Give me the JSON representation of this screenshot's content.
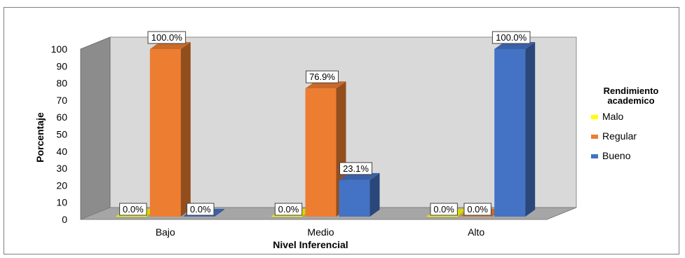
{
  "chart_data": {
    "type": "bar",
    "categories": [
      "Bajo",
      "Medio",
      "Alto"
    ],
    "series": [
      {
        "name": "Malo",
        "color": "#ffff00",
        "values": [
          0.0,
          0.0,
          0.0
        ],
        "labels": [
          "0.0%",
          "0.0%",
          "0.0%"
        ]
      },
      {
        "name": "Regular",
        "color": "#ed7d31",
        "values": [
          100.0,
          76.9,
          0.0
        ],
        "labels": [
          "100.0%",
          "76.9%",
          "0.0%"
        ]
      },
      {
        "name": "Bueno",
        "color": "#4472c4",
        "values": [
          0.0,
          23.1,
          100.0
        ],
        "labels": [
          "0.0%",
          "23.1%",
          "100.0%"
        ]
      }
    ],
    "xlabel": "Nivel Inferencial",
    "ylabel": "Porcentaje",
    "ylim": [
      0,
      100
    ],
    "yticks": [
      0,
      10,
      20,
      30,
      40,
      50,
      60,
      70,
      80,
      90,
      100
    ],
    "legend": {
      "title_lines": [
        "Rendimiento",
        "academico"
      ],
      "placement": "right"
    },
    "grid": false,
    "style": "3d-clustered-column"
  }
}
